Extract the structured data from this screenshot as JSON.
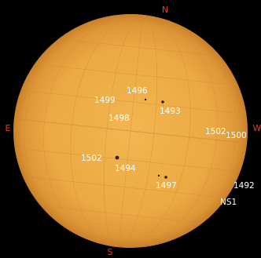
{
  "compass": {
    "north": "N",
    "south": "S",
    "east": "E",
    "west": "W"
  },
  "regions": [
    "1496",
    "1499",
    "1493",
    "1498",
    "1502",
    "1500",
    "1502",
    "1494",
    "1497",
    "1492",
    "NS1"
  ]
}
